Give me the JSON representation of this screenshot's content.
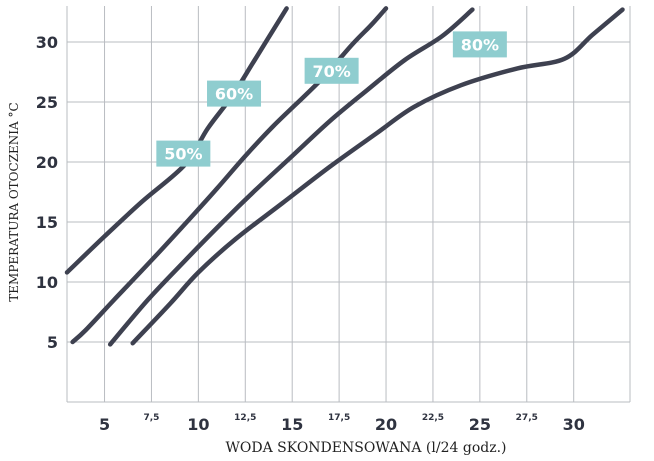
{
  "chart_data": {
    "type": "line",
    "xlabel": "WODA SKONDENSOWANA (l/24 godz.)",
    "ylabel": "TEMPERATURA OTOCZENIA °C",
    "xlim": [
      3,
      33
    ],
    "ylim": [
      0,
      33
    ],
    "x_ticks_major": [
      "5",
      "10",
      "15",
      "20",
      "25",
      "30"
    ],
    "x_ticks_minor": [
      "7,5",
      "12,5",
      "17,5",
      "22,5",
      "27,5"
    ],
    "y_ticks": [
      "5",
      "10",
      "15",
      "20",
      "25",
      "30"
    ],
    "grid": true,
    "series": [
      {
        "name": "50%",
        "points": [
          [
            3.0,
            10.8
          ],
          [
            5.0,
            13.8
          ],
          [
            7.0,
            16.7
          ],
          [
            9.3,
            19.8
          ],
          [
            10.5,
            22.8
          ],
          [
            11.8,
            25.5
          ],
          [
            13.0,
            28.5
          ],
          [
            14.7,
            32.8
          ]
        ]
      },
      {
        "name": "60%",
        "points": [
          [
            3.3,
            5.0
          ],
          [
            4.0,
            6.0
          ],
          [
            5.5,
            8.5
          ],
          [
            7.5,
            11.8
          ],
          [
            9.5,
            15.2
          ],
          [
            11.0,
            17.8
          ],
          [
            12.5,
            20.5
          ],
          [
            14.0,
            23.0
          ],
          [
            16.5,
            26.8
          ],
          [
            18.2,
            29.8
          ],
          [
            19.2,
            31.4
          ],
          [
            20.0,
            32.8
          ]
        ]
      },
      {
        "name": "70%",
        "points": [
          [
            5.3,
            4.8
          ],
          [
            7.3,
            8.5
          ],
          [
            9.3,
            11.8
          ],
          [
            11.3,
            15.0
          ],
          [
            13.0,
            17.6
          ],
          [
            15.0,
            20.5
          ],
          [
            17.0,
            23.4
          ],
          [
            19.0,
            26.0
          ],
          [
            21.0,
            28.5
          ],
          [
            23.0,
            30.5
          ],
          [
            24.6,
            32.7
          ]
        ]
      },
      {
        "name": "80%",
        "points": [
          [
            6.5,
            4.9
          ],
          [
            8.5,
            8.2
          ],
          [
            10.0,
            10.8
          ],
          [
            12.0,
            13.6
          ],
          [
            14.5,
            16.6
          ],
          [
            17.0,
            19.6
          ],
          [
            19.5,
            22.4
          ],
          [
            21.5,
            24.6
          ],
          [
            24.0,
            26.4
          ],
          [
            27.0,
            27.8
          ],
          [
            29.5,
            28.6
          ],
          [
            31.0,
            30.6
          ],
          [
            32.6,
            32.7
          ]
        ]
      }
    ],
    "series_label_positions": [
      {
        "label": "50%",
        "x": 9.2,
        "y": 20.7
      },
      {
        "label": "60%",
        "x": 11.9,
        "y": 25.7
      },
      {
        "label": "70%",
        "x": 17.1,
        "y": 27.6
      },
      {
        "label": "80%",
        "x": 25.0,
        "y": 29.8
      }
    ]
  }
}
